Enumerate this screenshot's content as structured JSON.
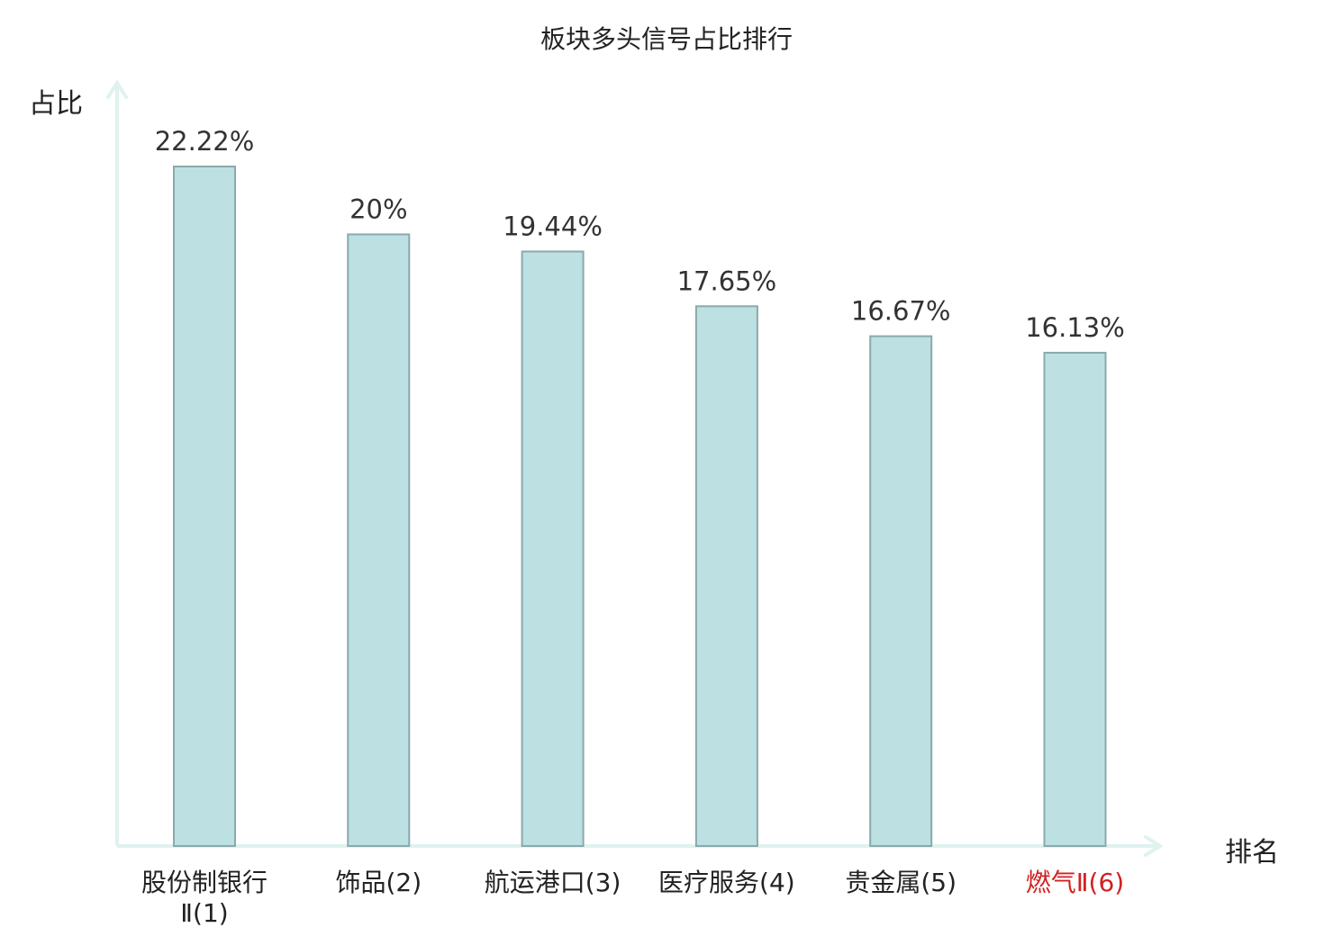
{
  "chart_data": {
    "type": "bar",
    "title": "板块多头信号占比排行",
    "ylabel": "占比",
    "xlabel": "排名",
    "categories": [
      "股份制银行Ⅱ(1)",
      "饰品(2)",
      "航运港口(3)",
      "医疗服务(4)",
      "贵金属(5)",
      "燃气Ⅱ(6)"
    ],
    "values": [
      22.22,
      20,
      19.44,
      17.65,
      16.67,
      16.13
    ],
    "data_labels": [
      "22.22%",
      "20%",
      "19.44%",
      "17.65%",
      "16.67%",
      "16.13%"
    ],
    "ylim": [
      0,
      25
    ],
    "grid": false,
    "highlight_index": 5,
    "colors": {
      "bar_fill": "#bde0e3",
      "bar_stroke": "#8aa9ab",
      "axis": "#dff2ef",
      "highlight_text": "#d42020"
    }
  }
}
